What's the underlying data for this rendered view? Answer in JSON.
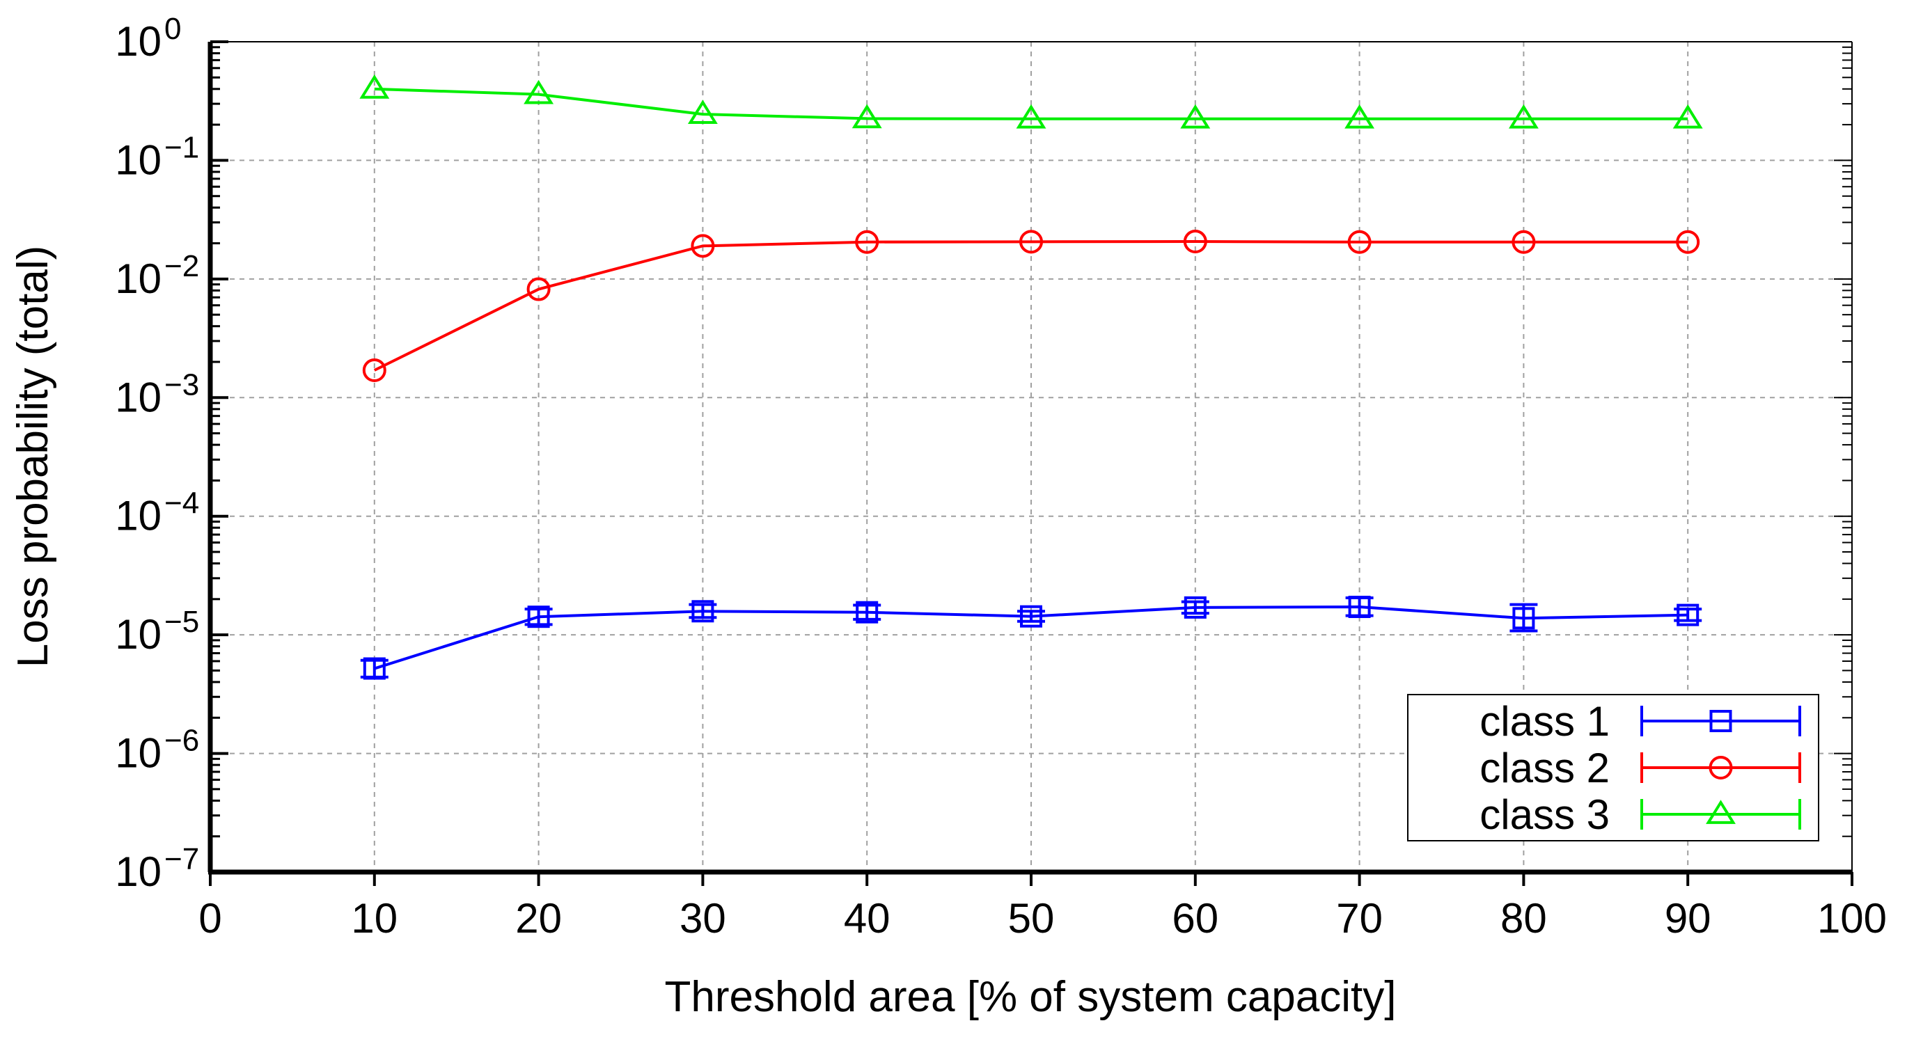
{
  "chart_data": {
    "type": "line",
    "title": "",
    "xlabel": "Threshold area [% of system capacity]",
    "ylabel": "Loss probability (total)",
    "xlim": [
      0,
      100
    ],
    "ylim": [
      1e-07,
      1
    ],
    "yscale": "log",
    "grid": true,
    "legend_position": "bottom-right",
    "x_ticks": [
      0,
      10,
      20,
      30,
      40,
      50,
      60,
      70,
      80,
      90,
      100
    ],
    "x_tick_labels": [
      "0",
      "10",
      "20",
      "30",
      "40",
      "50",
      "60",
      "70",
      "80",
      "90",
      "100"
    ],
    "y_tick_exponents": [
      0,
      -1,
      -2,
      -3,
      -4,
      -5,
      -6,
      -7
    ],
    "y_tick_base": "10",
    "x": [
      10,
      20,
      30,
      40,
      50,
      60,
      70,
      80,
      90
    ],
    "series": [
      {
        "name": "class 1",
        "color": "#0000ff",
        "marker": "square",
        "values": [
          5.2e-06,
          1.42e-05,
          1.58e-05,
          1.55e-05,
          1.43e-05,
          1.7e-05,
          1.72e-05,
          1.38e-05,
          1.47e-05
        ],
        "err_low": [
          4.4e-06,
          1.22e-05,
          1.4e-05,
          1.35e-05,
          1.3e-05,
          1.52e-05,
          1.45e-05,
          1.08e-05,
          1.32e-05
        ],
        "err_high": [
          6.1e-06,
          1.65e-05,
          1.8e-05,
          1.78e-05,
          1.58e-05,
          1.9e-05,
          2.05e-05,
          1.8e-05,
          1.65e-05
        ]
      },
      {
        "name": "class 2",
        "color": "#ff0000",
        "marker": "circle",
        "values": [
          0.0017,
          0.0082,
          0.019,
          0.0205,
          0.0206,
          0.0207,
          0.0205,
          0.0205,
          0.0205
        ]
      },
      {
        "name": "class 3",
        "color": "#00ee00",
        "marker": "triangle",
        "values": [
          0.4,
          0.36,
          0.245,
          0.225,
          0.224,
          0.224,
          0.224,
          0.224,
          0.224
        ]
      }
    ]
  }
}
